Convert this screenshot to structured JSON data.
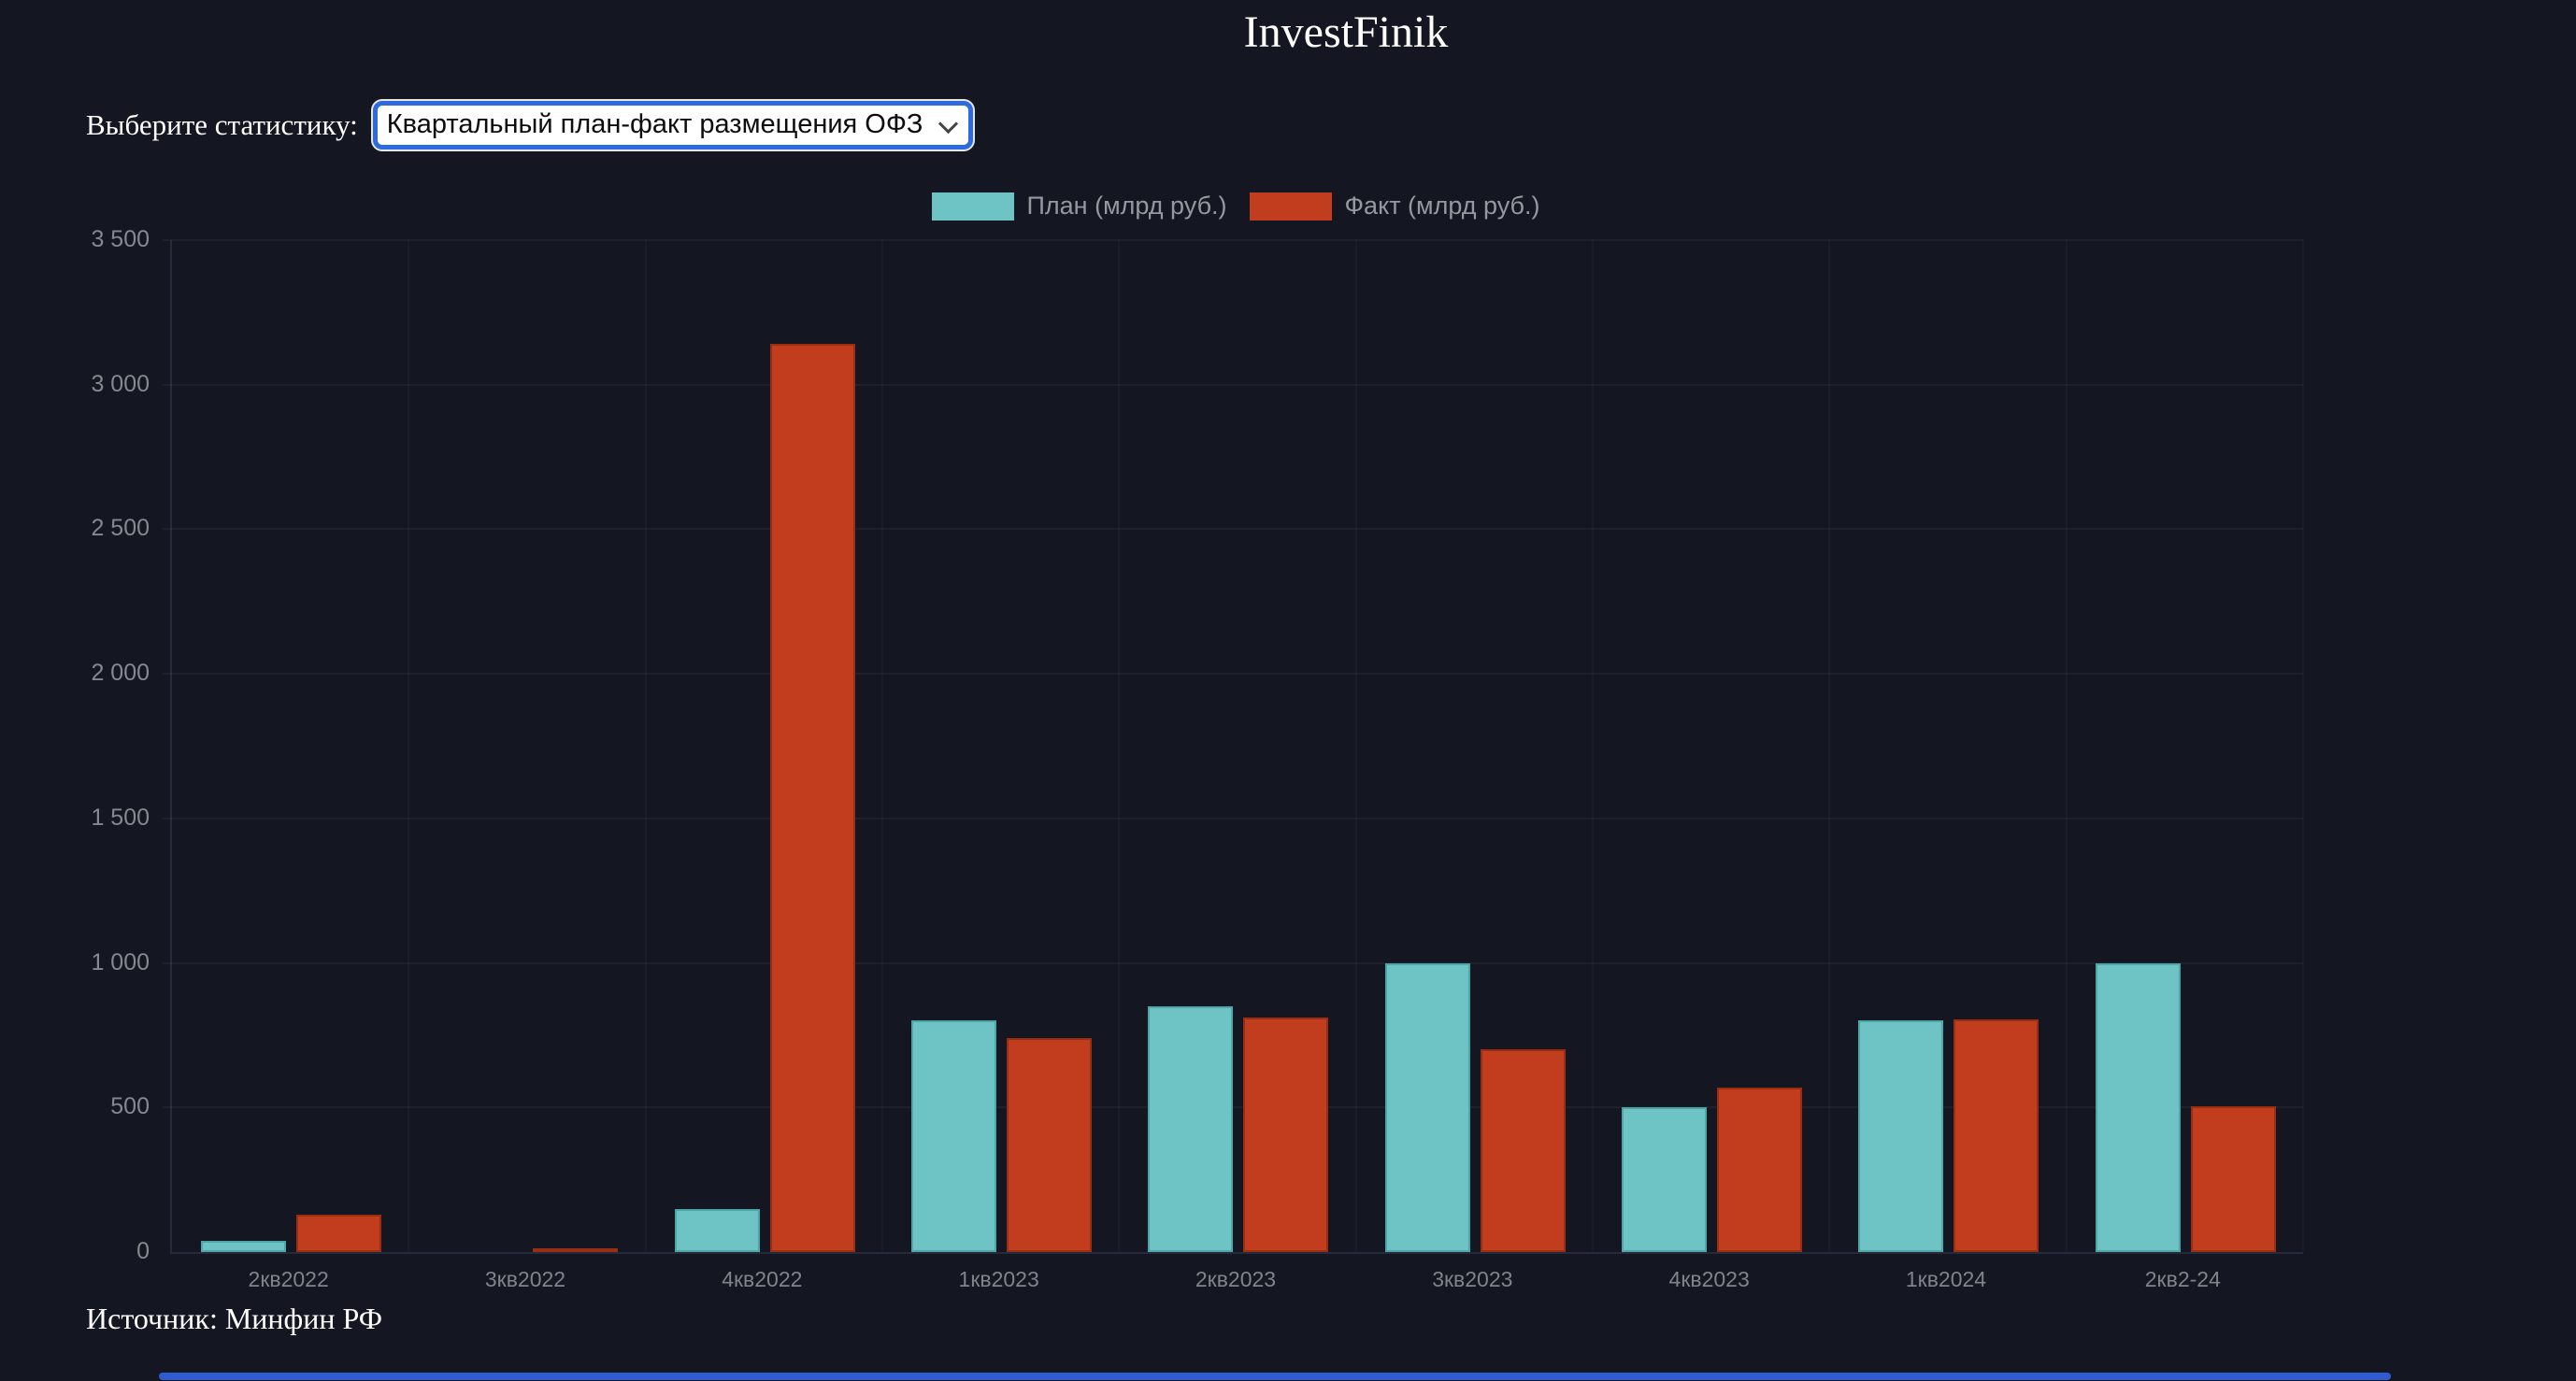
{
  "page": {
    "title": "InvestFinik",
    "source": "Источник: Минфин РФ"
  },
  "controls": {
    "label": "Выберите статистику:",
    "select_value": "Квартальный план-факт размещения ОФЗ"
  },
  "chart_data": {
    "type": "bar",
    "title": "",
    "categories": [
      "2кв2022",
      "3кв2022",
      "4кв2022",
      "1кв2023",
      "2кв2023",
      "3кв2023",
      "4кв2023",
      "1кв2024",
      "2кв2-24"
    ],
    "series": [
      {
        "name": "План (млрд руб.)",
        "color": "#6ec4c4",
        "border_color": "#4fa6a6",
        "values": [
          40,
          0,
          150,
          800,
          850,
          1000,
          500,
          800,
          1000
        ]
      },
      {
        "name": "Факт (млрд руб.)",
        "color": "#c23d1e",
        "border_color": "#9a2e13",
        "values": [
          130,
          10,
          3140,
          740,
          812,
          700,
          570,
          805,
          505
        ]
      }
    ],
    "xlabel": "",
    "ylabel": "",
    "ylim": [
      0,
      3500
    ],
    "ytick_step": 500,
    "grid": true,
    "legend_position": "top"
  },
  "colors": {
    "background": "#141722",
    "plan": "#6ec4c4",
    "fact": "#c23d1e",
    "axis_text": "#85888f",
    "legend_text": "#95999f",
    "select_focus_ring": "#2e6ae0",
    "scrollbar": "#2f5bd0"
  }
}
